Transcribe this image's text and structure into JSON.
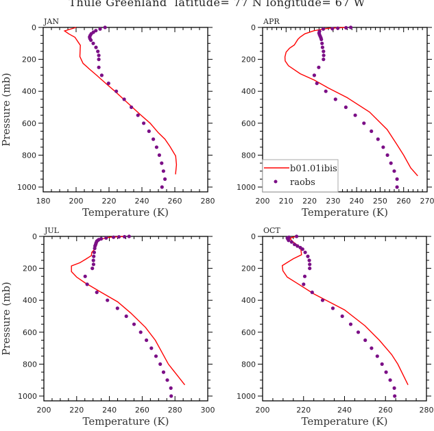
{
  "title": "Thule Greenland  latitude= 77 N longitude= 67 W",
  "colors": {
    "model": "#ff0000",
    "obs": "#7b0f86",
    "axis": "#000000"
  },
  "chart_data": [
    {
      "type": "line",
      "panel": "JAN",
      "xlabel": "Temperature (K)",
      "ylabel": "Pressure (mb)",
      "xlim": [
        180,
        280
      ],
      "xticks": [
        180,
        200,
        220,
        240,
        260,
        280
      ],
      "ylim": [
        0,
        1030
      ],
      "yticks": [
        0,
        200,
        400,
        600,
        800,
        1000
      ],
      "y_reversed": true,
      "series": [
        {
          "name": "b01.01ibis",
          "style": "line",
          "T": [
            200,
            193,
            195.5,
            199.3,
            201.9,
            202.6,
            202.3,
            204.2,
            208,
            212.5,
            218,
            223.6,
            231,
            238.9,
            245,
            250,
            254,
            257,
            260.5,
            261,
            260.4
          ],
          "p": [
            0,
            22,
            40,
            62,
            102,
            112,
            183,
            225,
            260,
            300,
            350,
            400,
            470,
            545,
            600,
            660,
            700,
            745,
            805,
            860,
            920
          ]
        },
        {
          "name": "raobs",
          "style": "dots",
          "T": [
            217.6,
            214.6,
            212,
            210.5,
            209.2,
            208.6,
            208.2,
            208.4,
            209,
            210.4,
            212.1,
            213.2,
            213.8,
            213.8,
            213.8,
            215.6,
            219.7,
            224.4,
            229.2,
            233.6,
            237.6,
            241.1,
            244.3,
            246.9,
            248.9,
            250.6,
            252,
            253.1,
            254,
            252.2
          ],
          "p": [
            0,
            10,
            20,
            30,
            40,
            50,
            60,
            70,
            80,
            100,
            125,
            150,
            175,
            200,
            250,
            300,
            350,
            400,
            450,
            500,
            550,
            600,
            650,
            700,
            750,
            800,
            850,
            900,
            950,
            1000
          ]
        }
      ]
    },
    {
      "type": "line",
      "panel": "APR",
      "xlabel": "Temperature (K)",
      "ylabel": "",
      "xlim": [
        200,
        270
      ],
      "xticks": [
        200,
        210,
        220,
        230,
        240,
        250,
        260,
        270
      ],
      "ylim": [
        0,
        1030
      ],
      "yticks": [
        0,
        200,
        400,
        600,
        800,
        1000
      ],
      "y_reversed": true,
      "series": [
        {
          "name": "b01.01ibis",
          "style": "line",
          "T": [
            236,
            228,
            222,
            218,
            216,
            215,
            213.5,
            211.5,
            210,
            209.5,
            209.6,
            211,
            216,
            222,
            228,
            236,
            245.5,
            253,
            257,
            260,
            263,
            266
          ],
          "p": [
            0,
            5,
            20,
            40,
            60,
            75,
            110,
            130,
            155,
            185,
            210,
            240,
            290,
            330,
            380,
            440,
            530,
            640,
            730,
            800,
            880,
            930
          ]
        },
        {
          "name": "raobs",
          "style": "dots",
          "T": [
            237.5,
            235.5,
            232,
            229.7,
            225.8,
            224.2,
            224,
            224.2,
            224.5,
            224.8,
            225,
            225.3,
            225.5,
            225.9,
            226,
            225.9,
            223.9,
            222,
            223.1,
            226.9,
            231,
            235.4,
            239.4,
            243.1,
            246.3,
            249.1,
            251.3,
            253.1,
            254.6,
            256,
            257.2,
            257.2
          ],
          "p": [
            0,
            2,
            5,
            8,
            10,
            25,
            35,
            45,
            55,
            65,
            75,
            100,
            125,
            150,
            175,
            200,
            250,
            300,
            350,
            400,
            450,
            500,
            550,
            600,
            650,
            700,
            750,
            800,
            850,
            900,
            950,
            1000
          ]
        }
      ]
    },
    {
      "type": "line",
      "panel": "JUL",
      "xlabel": "Temperature (K)",
      "ylabel": "Pressure (mb)",
      "xlim": [
        200,
        300
      ],
      "xticks": [
        200,
        220,
        240,
        260,
        280,
        300
      ],
      "ylim": [
        0,
        1030
      ],
      "yticks": [
        0,
        200,
        400,
        600,
        800,
        1000
      ],
      "y_reversed": true,
      "series": [
        {
          "name": "b01.01ibis",
          "style": "line",
          "T": [
            250,
            240,
            236,
            233,
            232,
            230.6,
            229.2,
            229,
            226,
            222,
            216.8,
            216.8,
            220,
            225,
            235,
            245,
            253,
            262,
            268,
            276,
            286
          ],
          "p": [
            0,
            5,
            15,
            30,
            60,
            85,
            100,
            120,
            140,
            165,
            185,
            220,
            255,
            290,
            350,
            410,
            480,
            570,
            650,
            800,
            930
          ]
        },
        {
          "name": "raobs",
          "style": "dots",
          "T": [
            252,
            249.2,
            245.8,
            242.5,
            238,
            235,
            233.5,
            232.9,
            232.3,
            231.9,
            231.6,
            231.2,
            231,
            230.7,
            230.4,
            230.2,
            230.3,
            229.6,
            225.2,
            226.4,
            232.3,
            238.8,
            244.9,
            250.3,
            255,
            259.1,
            262.6,
            265.6,
            268.4,
            271,
            273,
            275.3,
            277.5,
            277.7
          ],
          "p": [
            0,
            2,
            3,
            5,
            10,
            15,
            20,
            25,
            30,
            40,
            50,
            60,
            75,
            100,
            125,
            150,
            175,
            200,
            250,
            300,
            350,
            400,
            450,
            500,
            550,
            600,
            650,
            700,
            750,
            800,
            850,
            900,
            950,
            1000
          ]
        }
      ]
    },
    {
      "type": "line",
      "panel": "OCT",
      "xlabel": "Temperature (K)",
      "ylabel": "",
      "xlim": [
        200,
        280
      ],
      "xticks": [
        200,
        220,
        240,
        260,
        280
      ],
      "ylim": [
        0,
        1030
      ],
      "yticks": [
        0,
        200,
        400,
        600,
        800,
        1000
      ],
      "y_reversed": true,
      "series": [
        {
          "name": "b01.01ibis",
          "style": "line",
          "T": [
            216.5,
            214,
            213.5,
            214.5,
            218.5,
            218.7,
            219,
            215,
            209.6,
            209.9,
            212,
            217,
            225,
            240,
            250,
            257,
            263,
            266,
            271
          ],
          "p": [
            0,
            8,
            15,
            30,
            70,
            85,
            115,
            140,
            183,
            215,
            255,
            295,
            360,
            460,
            560,
            650,
            740,
            800,
            930
          ]
        },
        {
          "name": "raobs",
          "style": "dots",
          "T": [
            216.6,
            212.9,
            212.1,
            212.3,
            212.7,
            214.2,
            215.6,
            217,
            218.4,
            219.5,
            220.8,
            222.1,
            222.8,
            223,
            223,
            220.6,
            220,
            224.2,
            229.3,
            234.3,
            238.9,
            243,
            246.7,
            250.1,
            253.2,
            256,
            258.3,
            260.3,
            262.3,
            264.3,
            264.5
          ],
          "p": [
            0,
            5,
            10,
            15,
            25,
            35,
            50,
            60,
            70,
            80,
            100,
            125,
            150,
            175,
            200,
            250,
            300,
            350,
            400,
            450,
            500,
            550,
            600,
            650,
            700,
            750,
            800,
            850,
            900,
            950,
            1000
          ]
        }
      ]
    }
  ],
  "legend": {
    "placement": "bottom-left of APR panel",
    "model_label": "b01.01ibis",
    "obs_label": "raobs"
  }
}
